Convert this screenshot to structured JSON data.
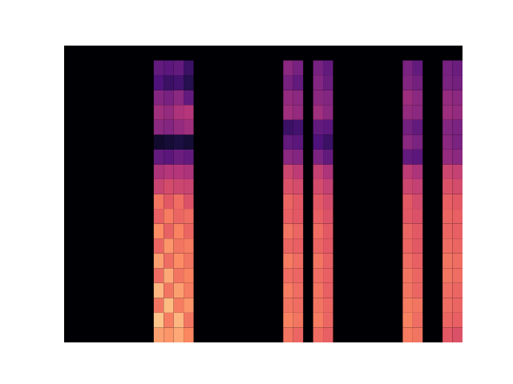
{
  "chart_data": {
    "type": "heatmap",
    "xlim": [
      0,
      40
    ],
    "ylim": [
      0,
      20
    ],
    "tick_labels": false,
    "grid": false,
    "value_range": [
      0,
      100
    ],
    "cells": [
      {
        "x": 9,
        "values": [
          80,
          88,
          70,
          85,
          68,
          80,
          66,
          76,
          64,
          70,
          55,
          48,
          30,
          8,
          40,
          45,
          38,
          25,
          30,
          null
        ]
      },
      {
        "x": 10,
        "values": [
          78,
          72,
          86,
          70,
          82,
          68,
          78,
          65,
          72,
          62,
          58,
          50,
          28,
          10,
          38,
          42,
          35,
          20,
          28,
          null
        ]
      },
      {
        "x": 11,
        "values": [
          82,
          85,
          72,
          80,
          70,
          76,
          70,
          74,
          66,
          68,
          56,
          50,
          32,
          12,
          42,
          48,
          40,
          22,
          30,
          null
        ]
      },
      {
        "x": 12,
        "values": [
          75,
          70,
          78,
          72,
          74,
          70,
          72,
          66,
          68,
          60,
          55,
          48,
          30,
          10,
          45,
          50,
          30,
          15,
          20,
          null
        ]
      },
      {
        "x": 22,
        "values": [
          70,
          74,
          70,
          72,
          68,
          72,
          66,
          70,
          64,
          66,
          60,
          56,
          40,
          30,
          20,
          45,
          42,
          35,
          40,
          null
        ]
      },
      {
        "x": 23,
        "values": [
          66,
          70,
          68,
          68,
          66,
          68,
          64,
          66,
          62,
          62,
          58,
          52,
          38,
          28,
          22,
          42,
          40,
          30,
          35,
          null
        ]
      },
      {
        "x": 25,
        "values": [
          68,
          72,
          70,
          70,
          68,
          70,
          66,
          68,
          64,
          62,
          58,
          54,
          36,
          25,
          30,
          45,
          40,
          38,
          35,
          null
        ]
      },
      {
        "x": 26,
        "values": [
          64,
          66,
          66,
          64,
          64,
          64,
          62,
          62,
          60,
          58,
          54,
          48,
          30,
          20,
          28,
          40,
          38,
          32,
          30,
          null
        ]
      },
      {
        "x": 34,
        "values": [
          72,
          74,
          72,
          70,
          70,
          68,
          66,
          66,
          62,
          62,
          56,
          52,
          30,
          40,
          34,
          42,
          44,
          38,
          36,
          null
        ]
      },
      {
        "x": 35,
        "values": [
          70,
          68,
          70,
          66,
          66,
          64,
          62,
          62,
          60,
          58,
          54,
          48,
          28,
          36,
          30,
          40,
          40,
          34,
          30,
          null
        ]
      },
      {
        "x": 38,
        "values": [
          62,
          66,
          68,
          68,
          70,
          70,
          68,
          66,
          66,
          64,
          60,
          56,
          42,
          40,
          38,
          44,
          42,
          36,
          35,
          null
        ]
      },
      {
        "x": 39,
        "values": [
          60,
          64,
          66,
          66,
          68,
          68,
          66,
          64,
          64,
          62,
          58,
          54,
          40,
          36,
          36,
          42,
          40,
          34,
          32,
          null
        ]
      }
    ]
  }
}
